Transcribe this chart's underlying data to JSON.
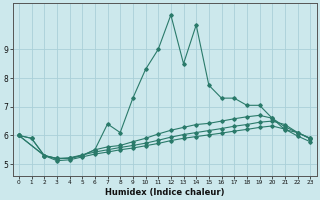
{
  "xlabel": "Humidex (Indice chaleur)",
  "background_color": "#cce8ec",
  "grid_color": "#aad0d8",
  "line_color": "#2a7a6a",
  "x_ticks": [
    0,
    1,
    2,
    3,
    4,
    5,
    6,
    7,
    8,
    9,
    10,
    11,
    12,
    13,
    14,
    15,
    16,
    17,
    18,
    19,
    20,
    21,
    22,
    23
  ],
  "y_ticks": [
    5,
    6,
    7,
    8,
    9
  ],
  "xlim": [
    -0.5,
    23.5
  ],
  "ylim": [
    4.6,
    10.6
  ],
  "line1_x": [
    0,
    1,
    2,
    3,
    4,
    5,
    6,
    7,
    8,
    9,
    10,
    11,
    12,
    13,
    14,
    15,
    16,
    17,
    18,
    19,
    20,
    21,
    22,
    23
  ],
  "line1_y": [
    6.0,
    5.9,
    5.3,
    5.2,
    5.2,
    5.3,
    5.5,
    6.4,
    6.1,
    7.3,
    8.3,
    9.0,
    10.2,
    8.5,
    9.85,
    7.75,
    7.3,
    7.3,
    7.05,
    7.05,
    6.6,
    6.2,
    6.1,
    5.9
  ],
  "line2_x": [
    0,
    1,
    2,
    3,
    4,
    5,
    6,
    7,
    8,
    9,
    10,
    11,
    12,
    13,
    14,
    15,
    16,
    17,
    18,
    19,
    20,
    21,
    22,
    23
  ],
  "line2_y": [
    6.0,
    5.9,
    5.3,
    5.2,
    5.2,
    5.3,
    5.5,
    5.6,
    5.65,
    5.78,
    5.9,
    6.05,
    6.18,
    6.28,
    6.38,
    6.42,
    6.5,
    6.58,
    6.65,
    6.7,
    6.6,
    6.3,
    6.1,
    5.9
  ],
  "line3_x": [
    0,
    2,
    3,
    4,
    5,
    6,
    7,
    8,
    9,
    10,
    11,
    12,
    13,
    14,
    15,
    16,
    17,
    18,
    19,
    20,
    21,
    22,
    23
  ],
  "line3_y": [
    6.0,
    5.3,
    5.18,
    5.22,
    5.32,
    5.42,
    5.5,
    5.58,
    5.65,
    5.73,
    5.83,
    5.94,
    6.03,
    6.1,
    6.17,
    6.24,
    6.32,
    6.38,
    6.46,
    6.5,
    6.38,
    6.1,
    5.88
  ],
  "line4_x": [
    0,
    2,
    3,
    4,
    5,
    6,
    7,
    8,
    9,
    10,
    11,
    12,
    13,
    14,
    15,
    16,
    17,
    18,
    19,
    20,
    21,
    22,
    23
  ],
  "line4_y": [
    6.0,
    5.3,
    5.12,
    5.15,
    5.25,
    5.35,
    5.42,
    5.5,
    5.56,
    5.64,
    5.72,
    5.82,
    5.9,
    5.96,
    6.02,
    6.08,
    6.15,
    6.21,
    6.28,
    6.33,
    6.22,
    5.98,
    5.78
  ]
}
